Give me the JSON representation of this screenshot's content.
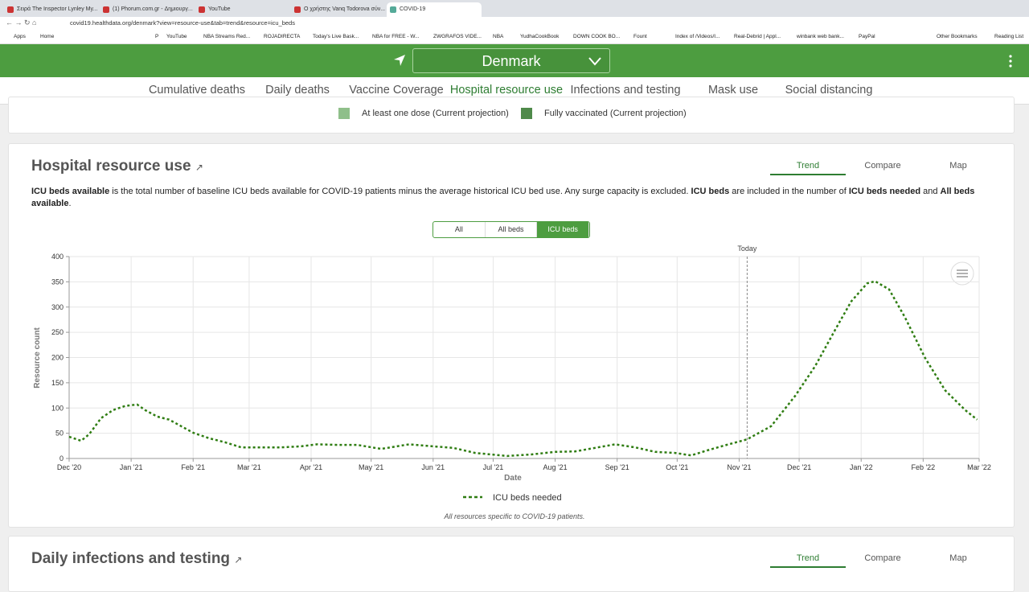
{
  "browser": {
    "tabs": [
      "Σειρά The Inspector Lynley My...",
      "(1) Phorum.com.gr - Δημιουργ...",
      "YouTube",
      "Ο χρήστης Vanq Todorova σύν...",
      "COVID-19"
    ],
    "active_tab": 4,
    "url": "covid19.healthdata.org/denmark?view=resource-use&tab=trend&resource=icu_beds",
    "bookmarks": [
      "Apps",
      "Home",
      "P",
      "YouTube",
      "NBA Streams Red...",
      "ROJADIRECTA",
      "Today's Live Bask...",
      "NBA for FREE - W...",
      "ZWGRAFOS VIDE...",
      "NBA",
      "YudhaCookBook",
      "DOWN COOK BO...",
      "Fount",
      "Index of /Videos/I...",
      "Real-Debrid | Appl...",
      "winbank web bank...",
      "PayPal"
    ],
    "bookmarks_right": [
      "Other Bookmarks",
      "Reading List"
    ]
  },
  "header": {
    "location": "Denmark"
  },
  "nav": {
    "items": [
      "Cumulative deaths",
      "Daily deaths",
      "Vaccine Coverage",
      "Hospital resource use",
      "Infections and testing",
      "Mask use",
      "Social distancing"
    ],
    "active": 3
  },
  "previous_card": {
    "legend": [
      {
        "label": "At least one dose (Current projection)",
        "color": "#8fbf8a"
      },
      {
        "label": "Fully vaccinated (Current projection)",
        "color": "#4f8a4a"
      }
    ]
  },
  "hospital_card": {
    "title": "Hospital resource use",
    "views": [
      "Trend",
      "Compare",
      "Map"
    ],
    "active_view": 0,
    "description": [
      {
        "text": "ICU beds available",
        "bold": true
      },
      {
        "text": " is the total number of baseline ICU beds available for COVID-19 patients minus the average historical ICU bed use. Any surge capacity is excluded. ",
        "bold": false
      },
      {
        "text": "ICU beds",
        "bold": true
      },
      {
        "text": " are included in the number of ",
        "bold": false
      },
      {
        "text": "ICU beds needed",
        "bold": true
      },
      {
        "text": " and ",
        "bold": false
      },
      {
        "text": "All beds available",
        "bold": true
      },
      {
        "text": ".",
        "bold": false
      }
    ],
    "toggle": [
      "All",
      "All beds",
      "ICU beds"
    ],
    "active_toggle": 2,
    "note": "All resources specific to COVID-19 patients."
  },
  "chart_data": {
    "type": "line",
    "x_label": "Date",
    "y_label": "Resource count",
    "x": [
      0,
      6,
      10,
      16,
      22,
      28,
      34,
      38,
      44,
      50,
      56,
      62,
      70,
      78,
      86,
      94,
      106,
      116,
      124,
      134,
      144,
      156,
      170,
      182,
      192,
      203,
      219,
      231,
      243,
      253,
      263,
      273,
      283,
      293,
      303,
      311,
      319,
      327,
      339,
      351,
      363,
      373,
      383,
      391,
      399,
      403,
      410,
      418,
      428,
      438,
      448,
      454
    ],
    "series": [
      {
        "name": "ICU beds needed",
        "color": "#2f7d12",
        "dashed": true,
        "values": [
          43,
          35,
          48,
          80,
          96,
          104,
          107,
          96,
          83,
          77,
          64,
          51,
          40,
          32,
          22,
          22,
          22,
          24,
          28,
          27,
          27,
          19,
          28,
          24,
          21,
          11,
          5,
          8,
          13,
          14,
          21,
          28,
          22,
          13,
          11,
          6,
          16,
          25,
          38,
          64,
          124,
          183,
          255,
          311,
          347,
          351,
          335,
          279,
          199,
          135,
          96,
          77
        ]
      }
    ],
    "xlim": [
      0,
      455
    ],
    "ylim": [
      0,
      400
    ],
    "xticks": [
      {
        "value": 0,
        "label": "Dec '20"
      },
      {
        "value": 31,
        "label": "Jan '21"
      },
      {
        "value": 62,
        "label": "Feb '21"
      },
      {
        "value": 90,
        "label": "Mar '21"
      },
      {
        "value": 121,
        "label": "Apr '21"
      },
      {
        "value": 151,
        "label": "May '21"
      },
      {
        "value": 182,
        "label": "Jun '21"
      },
      {
        "value": 212,
        "label": "Jul '21"
      },
      {
        "value": 243,
        "label": "Aug '21"
      },
      {
        "value": 274,
        "label": "Sep '21"
      },
      {
        "value": 304,
        "label": "Oct '21"
      },
      {
        "value": 335,
        "label": "Nov '21"
      },
      {
        "value": 365,
        "label": "Dec '21"
      },
      {
        "value": 396,
        "label": "Jan '22"
      },
      {
        "value": 427,
        "label": "Feb '22"
      },
      {
        "value": 455,
        "label": "Mar '22"
      }
    ],
    "yticks": [
      0,
      50,
      100,
      150,
      200,
      250,
      300,
      350,
      400
    ],
    "grid": true,
    "legend": "bottom",
    "annotations": [
      {
        "x": 339,
        "label": "Today"
      }
    ]
  },
  "next_card": {
    "title": "Daily infections and testing",
    "views": [
      "Trend",
      "Compare",
      "Map"
    ],
    "active_view": 0
  }
}
